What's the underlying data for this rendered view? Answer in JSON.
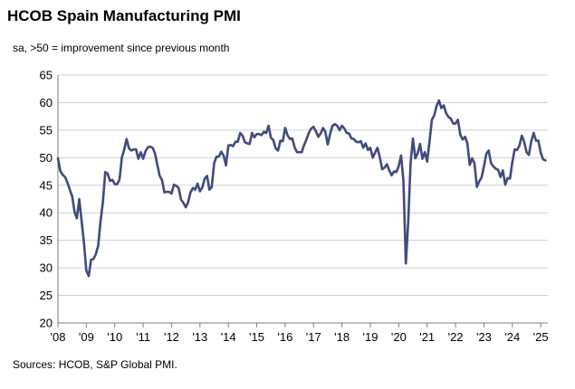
{
  "title": "HCOB Spain Manufacturing PMI",
  "subtitle": "sa, >50 = improvement since previous month",
  "source": "Sources: HCOB, S&P Global PMI.",
  "colors": {
    "line": "#3f4b7c",
    "grid": "#d0d0d0",
    "axis": "#7f7f7f"
  },
  "chart_data": {
    "type": "line",
    "title": "HCOB Spain Manufacturing PMI",
    "xlabel": "",
    "ylabel": "",
    "ylim": [
      20,
      65
    ],
    "y_ticks": [
      20,
      25,
      30,
      35,
      40,
      45,
      50,
      55,
      60,
      65
    ],
    "x_ticks": [
      "'08",
      "'09",
      "'10",
      "'11",
      "'12",
      "'13",
      "'14",
      "'15",
      "'16",
      "'17",
      "'18",
      "'19",
      "'20",
      "'21",
      "'22",
      "'23",
      "'24",
      "'25"
    ],
    "grid": "horizontal",
    "x_start": "2008-01",
    "frequency": "monthly",
    "series": [
      {
        "values": [
          49.9,
          47.6,
          46.9,
          46.5,
          45.5,
          44.2,
          43.0,
          40.2,
          39.0,
          42.5,
          38.5,
          34.5,
          29.5,
          28.5,
          31.5,
          31.6,
          32.5,
          34.0,
          38.5,
          42.0,
          47.4,
          47.1,
          45.8,
          46.0,
          45.2,
          45.2,
          46.0,
          50.0,
          51.5,
          53.4,
          51.7,
          51.3,
          51.5,
          51.5,
          49.8,
          51.0,
          49.8,
          51.2,
          51.9,
          52.0,
          51.8,
          50.8,
          48.7,
          46.7,
          45.9,
          43.7,
          43.8,
          43.8,
          43.5,
          45.1,
          44.9,
          44.5,
          42.4,
          41.8,
          41.0,
          41.9,
          43.7,
          44.5,
          44.2,
          45.3,
          43.9,
          44.6,
          46.2,
          46.7,
          44.2,
          44.7,
          49.0,
          50.2,
          50.2,
          51.1,
          50.4,
          48.6,
          52.2,
          52.3,
          52.1,
          52.9,
          52.9,
          54.5,
          54.0,
          52.8,
          52.6,
          52.5,
          54.5,
          53.7,
          54.3,
          54.3,
          54.1,
          54.7,
          54.5,
          55.8,
          53.6,
          53.2,
          51.7,
          51.3,
          53.1,
          53.0,
          55.4,
          54.1,
          53.4,
          53.5,
          51.9,
          51.0,
          51.0,
          51.0,
          52.3,
          53.3,
          54.5,
          55.3,
          55.6,
          54.8,
          53.8,
          54.4,
          55.4,
          54.7,
          52.4,
          54.3,
          55.8,
          56.1,
          55.8,
          55.0,
          55.8,
          55.3,
          54.5,
          54.4,
          53.5,
          53.4,
          52.9,
          52.8,
          53.0,
          51.8,
          52.6,
          51.4,
          51.8,
          50.0,
          50.9,
          51.8,
          50.1,
          47.9,
          48.2,
          48.8,
          47.7,
          46.8,
          47.5,
          47.4,
          48.5,
          50.4,
          45.7,
          30.8,
          38.3,
          49.0,
          53.5,
          49.9,
          50.8,
          52.5,
          49.8,
          51.0,
          49.3,
          52.9,
          56.9,
          57.7,
          59.4,
          60.4,
          59.0,
          59.5,
          58.1,
          57.4,
          57.1,
          56.2,
          56.2,
          56.9,
          54.2,
          53.3,
          53.8,
          52.6,
          48.7,
          49.9,
          49.0,
          44.7,
          45.7,
          46.4,
          48.4,
          50.7,
          51.3,
          49.0,
          48.4,
          48.0,
          47.8,
          46.5,
          47.7,
          45.1,
          46.3,
          46.2,
          49.2,
          51.5,
          51.4,
          52.2,
          54.0,
          52.9,
          51.0,
          50.5,
          53.0,
          54.5,
          53.1,
          53.1,
          50.9,
          49.7,
          49.5
        ]
      }
    ]
  }
}
